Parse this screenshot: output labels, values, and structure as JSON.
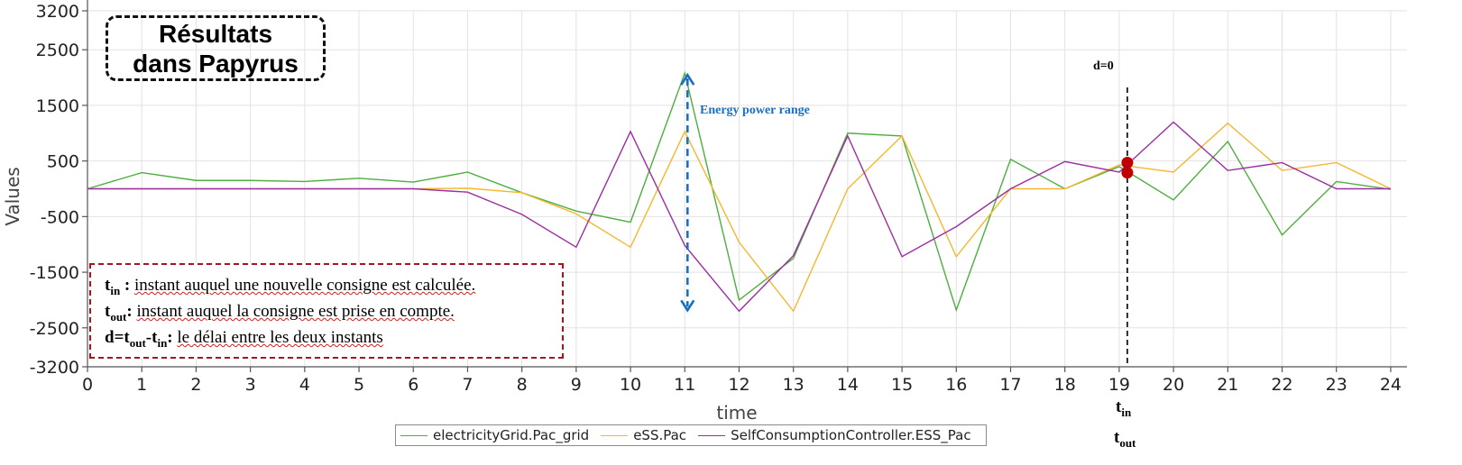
{
  "title_box": {
    "line1": "Résultats",
    "line2": "dans Papyrus"
  },
  "annotations": {
    "energy_range": "Energy power range",
    "d_label": "d=0",
    "t_in": "t",
    "t_in_sub": "in",
    "t_out": "t",
    "t_out_sub": "out"
  },
  "definitions": {
    "row1_term": "t",
    "row1_sub": "in",
    "row1_sep": " :",
    "row1_text": "instant auquel une nouvelle consigne est calculée.",
    "row2_term": "t",
    "row2_sub": "out",
    "row2_sep": ":",
    "row2_text": "instant auquel la consigne est prise en compte.",
    "row3_term_a": "d=t",
    "row3_sub_a": "out",
    "row3_mid": "-t",
    "row3_sub_b": "in",
    "row3_sep": ":",
    "row3_text": "le délai entre les deux instants"
  },
  "colors": {
    "grid": "#4caf3e",
    "ess": "#f5b731",
    "controller": "#9c2fa3",
    "arrow": "#1a6fc2",
    "marker": "#c00000"
  },
  "chart_data": {
    "type": "line",
    "xlabel": "time",
    "ylabel": "Values",
    "x": [
      0,
      1,
      2,
      3,
      4,
      5,
      6,
      7,
      8,
      9,
      10,
      11,
      12,
      13,
      14,
      15,
      16,
      17,
      18,
      19,
      20,
      21,
      22,
      23,
      24
    ],
    "xlim": [
      0,
      24.3
    ],
    "ylim": [
      -3200,
      3200
    ],
    "yticks": [
      3200,
      2500,
      1500,
      500,
      -500,
      -1500,
      -2500,
      -3200
    ],
    "xticks": [
      0,
      1,
      2,
      3,
      4,
      5,
      6,
      7,
      8,
      9,
      10,
      11,
      12,
      13,
      14,
      15,
      16,
      17,
      18,
      19,
      20,
      21,
      22,
      23,
      24
    ],
    "grid": true,
    "legend_position": "bottom",
    "series": [
      {
        "name": "electricityGrid.Pac_grid",
        "color_key": "grid",
        "values": [
          0,
          290,
          150,
          150,
          130,
          190,
          120,
          300,
          -70,
          -400,
          -600,
          2080,
          -2000,
          -1250,
          1000,
          950,
          -2180,
          530,
          0,
          400,
          -200,
          850,
          -830,
          130,
          -10
        ]
      },
      {
        "name": "eSS.Pac",
        "color_key": "ess",
        "values": [
          0,
          0,
          0,
          0,
          0,
          0,
          0,
          10,
          -70,
          -450,
          -1050,
          1030,
          -960,
          -2200,
          0,
          950,
          -1220,
          0,
          0,
          430,
          300,
          1180,
          330,
          470,
          0
        ]
      },
      {
        "name": "SelfConsumptionController.ESS_Pac",
        "color_key": "controller",
        "values": [
          0,
          0,
          0,
          0,
          0,
          0,
          0,
          -60,
          -460,
          -1050,
          1030,
          -1020,
          -2200,
          -1200,
          950,
          -1220,
          -680,
          0,
          490,
          300,
          1200,
          330,
          470,
          0,
          0
        ]
      }
    ],
    "markers": [
      {
        "x": 19.15,
        "y": 470
      },
      {
        "x": 19.15,
        "y": 290
      }
    ],
    "vline_x": 19.15,
    "energy_arrow": {
      "x": 11.05,
      "y_top": 2080,
      "y_bottom": -2200
    }
  }
}
